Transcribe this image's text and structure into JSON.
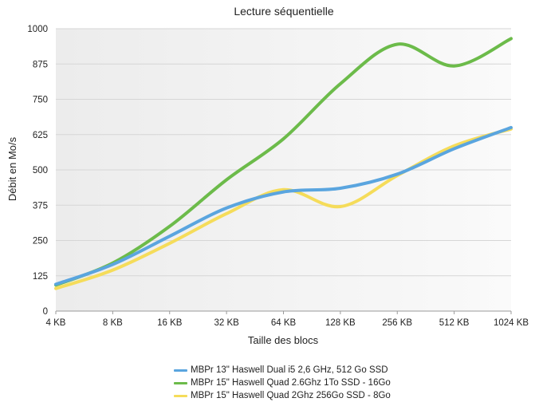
{
  "chart_data": {
    "type": "line",
    "title": "Lecture séquentielle",
    "xlabel": "Taille des blocs",
    "ylabel": "Débit en Mo/s",
    "categories": [
      "4 KB",
      "8 KB",
      "16 KB",
      "32 KB",
      "64 KB",
      "128 KB",
      "256 KB",
      "512 KB",
      "1024 KB"
    ],
    "yticks": [
      "0",
      "125",
      "250",
      "375",
      "500",
      "625",
      "750",
      "875",
      "1000"
    ],
    "ylim": [
      0,
      1000
    ],
    "grid": true,
    "smooth": true,
    "legend_position": "bottom",
    "series": [
      {
        "name": "MBPr 13\" Haswell Dual i5 2,6 GHz, 512 Go SSD",
        "color": "#5aa5df",
        "values": [
          95,
          165,
          265,
          365,
          422,
          435,
          485,
          575,
          650
        ]
      },
      {
        "name": "MBPr 15\" Haswell Quad 2.6Ghz 1To SSD - 16Go",
        "color": "#6cbb4a",
        "values": [
          92,
          170,
          300,
          465,
          610,
          805,
          945,
          868,
          965
        ]
      },
      {
        "name": "MBPr 15\" Haswell Quad 2Ghz 256Go SSD - 8Go",
        "color": "#f5dc5a",
        "values": [
          80,
          145,
          240,
          345,
          430,
          370,
          480,
          585,
          645
        ]
      }
    ]
  }
}
